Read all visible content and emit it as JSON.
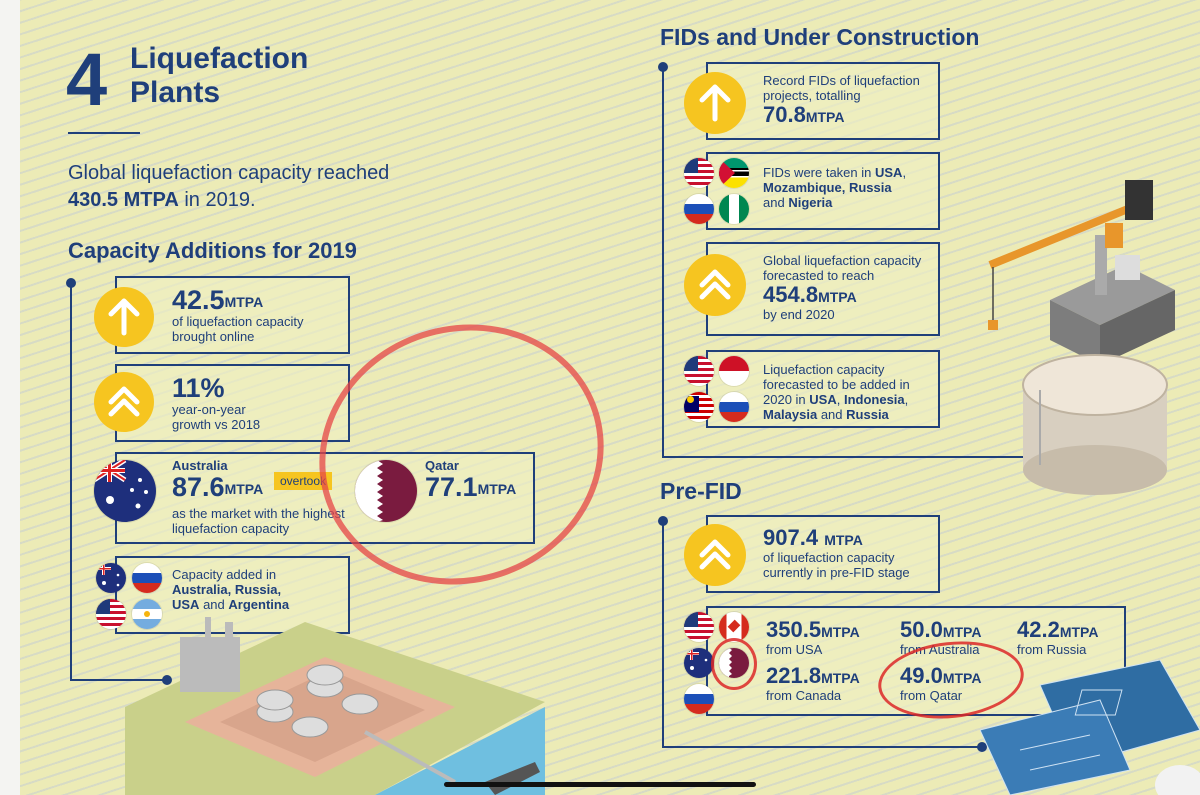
{
  "header": {
    "number": "4",
    "title_line1": "Liquefaction",
    "title_line2": "Plants"
  },
  "intro": {
    "line1": "Global liquefaction capacity reached",
    "value": "430.5 MTPA",
    "line2_rest": " in 2019."
  },
  "capacity": {
    "heading": "Capacity Additions for 2019",
    "item1": {
      "value": "42.5",
      "unit": "MTPA",
      "desc1": "of liquefaction capacity",
      "desc2": "brought online"
    },
    "item2": {
      "value": "11%",
      "desc1": "year-on-year",
      "desc2": "growth vs 2018"
    },
    "item3": {
      "country_a": "Australia",
      "value_a": "87.6",
      "unit": "MTPA",
      "badge": "overtook",
      "country_b": "Qatar",
      "value_b": "77.1",
      "desc1": "as the market with the highest",
      "desc2": "liquefaction capacity"
    },
    "item4": {
      "desc1": "Capacity added in",
      "c1": "Australia",
      "c2": "Russia",
      "c3": "USA",
      "and": "and",
      "c4": "Argentina"
    }
  },
  "fids": {
    "heading": "FIDs and Under Construction",
    "item1": {
      "desc1": "Record FIDs of liquefaction",
      "desc2": "projects, totalling",
      "value": "70.8",
      "unit": "MTPA"
    },
    "item2": {
      "desc1": "FIDs were taken in",
      "c1": "USA",
      "c2": "Mozambique",
      "c3": "Russia",
      "and": "and",
      "c4": "Nigeria"
    },
    "item3": {
      "desc1": "Global liquefaction capacity",
      "desc2": "forecasted to reach",
      "value": "454.8",
      "unit": "MTPA",
      "desc3": "by end 2020"
    },
    "item4": {
      "desc1": "Liquefaction capacity",
      "desc2": "forecasted to be added in",
      "desc3": "2020 in",
      "c1": "USA",
      "c2": "Indonesia",
      "c3": "Malaysia",
      "and": "and",
      "c4": "Russia"
    }
  },
  "prefid": {
    "heading": "Pre-FID",
    "item1": {
      "value": "907.4",
      "unit": "MTPA",
      "desc1": "of liquefaction capacity",
      "desc2": "currently in pre-FID stage"
    },
    "stats": [
      {
        "value": "350.5",
        "unit": "MTPA",
        "from": "from USA"
      },
      {
        "value": "50.0",
        "unit": "MTPA",
        "from": "from Australia"
      },
      {
        "value": "42.2",
        "unit": "MTPA",
        "from": "from Russia"
      },
      {
        "value": "221.8",
        "unit": "MTPA",
        "from": "from Canada"
      },
      {
        "value": "49.0",
        "unit": "MTPA",
        "from": "from Qatar"
      }
    ]
  }
}
